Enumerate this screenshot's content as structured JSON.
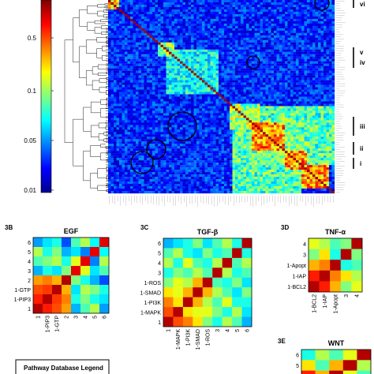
{
  "colors": {
    "scale": [
      "#00008f",
      "#0000ff",
      "#0080ff",
      "#00ffff",
      "#80ff80",
      "#ffff00",
      "#ff8000",
      "#ff0000",
      "#800000"
    ],
    "frame": "#000000"
  },
  "chart_data": [
    {
      "id": "3A",
      "type": "heatmap",
      "colorbar": {
        "ticks": [
          "0.5",
          "0.1",
          "0.05",
          "0.01"
        ],
        "scale": "log"
      },
      "cluster_bands": [
        "i",
        "ii",
        "iii",
        "iv",
        "v",
        "vi"
      ],
      "dendrogram": "rows"
    },
    {
      "id": "3B",
      "type": "heatmap",
      "panel_label": "3B",
      "title": "EGF",
      "row_labels": [
        "6",
        "5",
        "4",
        "3",
        "2",
        "1-GTP",
        "1-PIP3",
        "1"
      ],
      "col_labels": [
        "1",
        "1-PIP3",
        "1-GTP",
        "2",
        "3",
        "4",
        "5",
        "6"
      ],
      "values": [
        [
          0.28,
          0.35,
          0.4,
          0.2,
          0.45,
          0.55,
          0.38,
          0.9
        ],
        [
          0.55,
          0.4,
          0.5,
          0.3,
          0.35,
          0.25,
          0.9,
          0.38
        ],
        [
          0.45,
          0.5,
          0.55,
          0.4,
          0.6,
          0.9,
          0.25,
          0.55
        ],
        [
          0.3,
          0.4,
          0.35,
          0.5,
          0.9,
          0.6,
          0.35,
          0.45
        ],
        [
          0.72,
          0.75,
          0.7,
          0.95,
          0.5,
          0.4,
          0.3,
          0.2
        ],
        [
          0.8,
          0.82,
          0.95,
          0.7,
          0.35,
          0.55,
          0.5,
          0.4
        ],
        [
          0.85,
          0.95,
          0.82,
          0.75,
          0.4,
          0.5,
          0.4,
          0.35
        ],
        [
          0.95,
          0.85,
          0.8,
          0.72,
          0.3,
          0.45,
          0.55,
          0.28
        ]
      ]
    },
    {
      "id": "3C",
      "type": "heatmap",
      "panel_label": "3C",
      "title": "TGF-β",
      "row_labels": [
        "6",
        "5",
        "4",
        "3",
        "1-ROS",
        "1-SMAD",
        "1-PI3K",
        "1-MAPK",
        "1"
      ],
      "col_labels": [
        "1",
        "1-MAPK",
        "1-PI3K",
        "1-SMAD",
        "1-ROS",
        "3",
        "4",
        "5",
        "6"
      ],
      "values": [
        [
          0.3,
          0.35,
          0.4,
          0.5,
          0.35,
          0.45,
          0.55,
          0.4,
          0.95
        ],
        [
          0.45,
          0.55,
          0.4,
          0.35,
          0.5,
          0.4,
          0.45,
          0.95,
          0.4
        ],
        [
          0.55,
          0.4,
          0.6,
          0.45,
          0.4,
          0.55,
          0.95,
          0.45,
          0.55
        ],
        [
          0.4,
          0.5,
          0.45,
          0.55,
          0.45,
          0.95,
          0.55,
          0.4,
          0.45
        ],
        [
          0.5,
          0.6,
          0.55,
          0.7,
          0.95,
          0.45,
          0.4,
          0.5,
          0.35
        ],
        [
          0.65,
          0.6,
          0.7,
          0.95,
          0.7,
          0.55,
          0.45,
          0.35,
          0.5
        ],
        [
          0.75,
          0.65,
          0.95,
          0.7,
          0.55,
          0.45,
          0.6,
          0.4,
          0.4
        ],
        [
          0.8,
          0.95,
          0.65,
          0.6,
          0.6,
          0.5,
          0.4,
          0.55,
          0.35
        ],
        [
          0.95,
          0.8,
          0.75,
          0.65,
          0.5,
          0.4,
          0.55,
          0.45,
          0.3
        ]
      ]
    },
    {
      "id": "3D",
      "type": "heatmap",
      "panel_label": "3D",
      "title": "TNF-α",
      "row_labels": [
        "4",
        "3",
        "1-Apopt",
        "1-IAP",
        "1-BCL2"
      ],
      "col_labels": [
        "1-BCL2",
        "1-IAP",
        "1-Apopt",
        "3",
        "4"
      ],
      "values": [
        [
          0.6,
          0.55,
          0.45,
          0.5,
          0.95
        ],
        [
          0.5,
          0.65,
          0.4,
          0.95,
          0.5
        ],
        [
          0.7,
          0.75,
          0.95,
          0.4,
          0.45
        ],
        [
          0.85,
          0.95,
          0.75,
          0.65,
          0.55
        ],
        [
          0.95,
          0.85,
          0.7,
          0.5,
          0.6
        ]
      ]
    },
    {
      "id": "3E",
      "type": "heatmap",
      "panel_label": "3E",
      "title": "WNT",
      "row_labels": [
        "6",
        "5",
        "4"
      ],
      "values": [
        [
          0.4,
          0.55,
          0.45,
          0.6,
          0.95
        ],
        [
          0.65,
          0.45,
          0.7,
          0.95,
          0.55
        ],
        [
          0.85,
          0.7,
          0.95,
          0.6,
          0.45
        ]
      ]
    }
  ],
  "legend_box": {
    "title": "Pathway Database Legend"
  }
}
